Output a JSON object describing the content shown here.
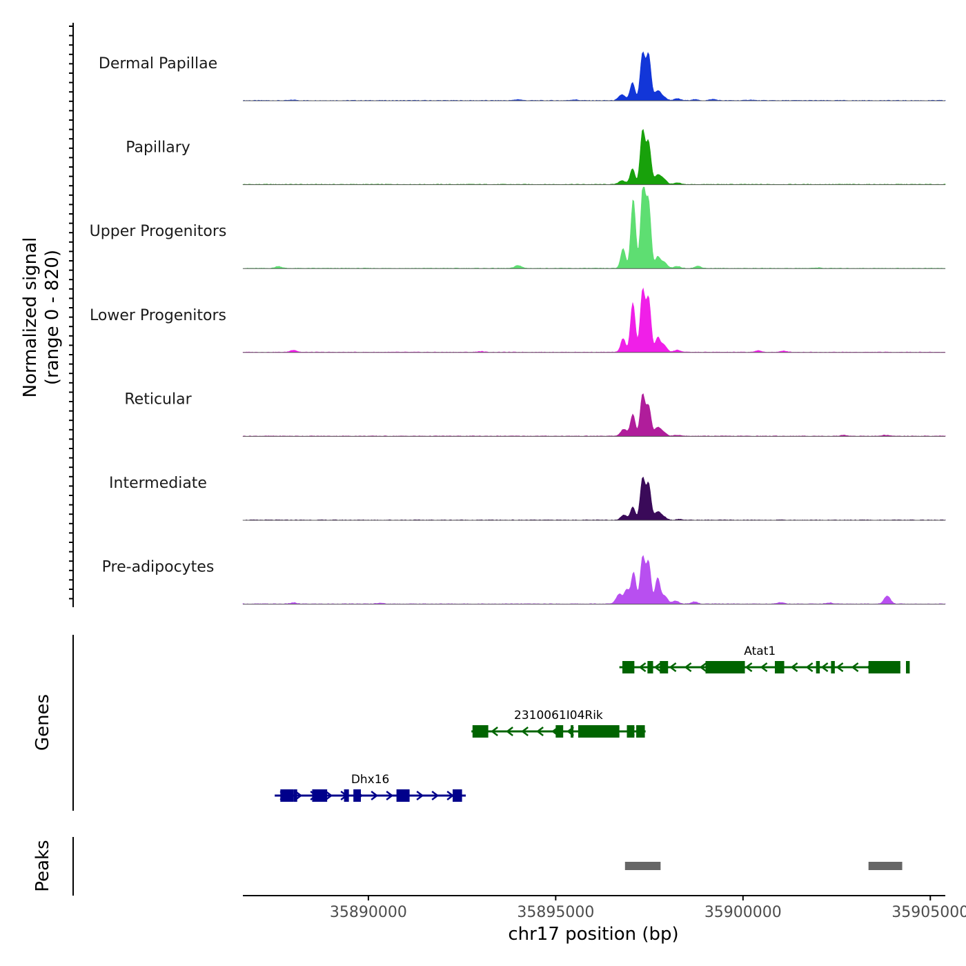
{
  "chart_data": {
    "type": "area",
    "title": "",
    "chromosome": "chr17",
    "xlabel": "chr17 position (bp)",
    "ylabel": "Normalized signal",
    "ylabel_range": "(range 0 - 820)",
    "ylim": [
      0,
      820
    ],
    "xlim": [
      35886650,
      35905400
    ],
    "x_ticks": [
      35890000,
      35895000,
      35900000,
      35905000
    ],
    "x_tick_labels": [
      "35890000",
      "35895000",
      "35900000",
      "35905000"
    ],
    "tracks": [
      {
        "name": "Dermal Papillae",
        "color": "#1236d8",
        "peaks": [
          [
            35896770,
            60
          ],
          [
            35897050,
            180
          ],
          [
            35897320,
            470
          ],
          [
            35897480,
            460
          ],
          [
            35897720,
            95
          ],
          [
            35897880,
            30
          ],
          [
            35898250,
            18
          ],
          [
            35898700,
            10
          ],
          [
            35899200,
            12
          ],
          [
            35900200,
            6
          ],
          [
            35895500,
            8
          ],
          [
            35894000,
            10
          ],
          [
            35888000,
            5
          ]
        ]
      },
      {
        "name": "Papillary",
        "color": "#18a10b",
        "peaks": [
          [
            35896770,
            40
          ],
          [
            35897050,
            160
          ],
          [
            35897320,
            540
          ],
          [
            35897480,
            420
          ],
          [
            35897720,
            90
          ],
          [
            35897880,
            50
          ],
          [
            35898250,
            15
          ]
        ]
      },
      {
        "name": "Upper Progenitors",
        "color": "#5ede72",
        "peaks": [
          [
            35896800,
            200
          ],
          [
            35897070,
            700
          ],
          [
            35897330,
            820
          ],
          [
            35897480,
            660
          ],
          [
            35897720,
            110
          ],
          [
            35897880,
            65
          ],
          [
            35898250,
            20
          ],
          [
            35898800,
            22
          ],
          [
            35887600,
            20
          ],
          [
            35894000,
            30
          ],
          [
            35902000,
            6
          ]
        ]
      },
      {
        "name": "Lower Progenitors",
        "color": "#f01fe8",
        "peaks": [
          [
            35896800,
            140
          ],
          [
            35897060,
            500
          ],
          [
            35897320,
            620
          ],
          [
            35897480,
            540
          ],
          [
            35897720,
            140
          ],
          [
            35897880,
            75
          ],
          [
            35898250,
            22
          ],
          [
            35888000,
            22
          ],
          [
            35900400,
            15
          ],
          [
            35901100,
            12
          ],
          [
            35893000,
            8
          ]
        ]
      },
      {
        "name": "Reticular",
        "color": "#b01d9b",
        "peaks": [
          [
            35896820,
            70
          ],
          [
            35897060,
            220
          ],
          [
            35897320,
            420
          ],
          [
            35897480,
            300
          ],
          [
            35897720,
            85
          ],
          [
            35897880,
            35
          ],
          [
            35898250,
            10
          ],
          [
            35902700,
            10
          ],
          [
            35903800,
            10
          ]
        ]
      },
      {
        "name": "Intermediate",
        "color": "#3a0a59",
        "peaks": [
          [
            35896820,
            50
          ],
          [
            35897060,
            130
          ],
          [
            35897320,
            420
          ],
          [
            35897480,
            360
          ],
          [
            35897720,
            80
          ],
          [
            35897880,
            30
          ],
          [
            35898300,
            8
          ]
        ]
      },
      {
        "name": "Pre-adipocytes",
        "color": "#b84ff0",
        "peaks": [
          [
            35896700,
            100
          ],
          [
            35896900,
            140
          ],
          [
            35897080,
            320
          ],
          [
            35897320,
            470
          ],
          [
            35897480,
            420
          ],
          [
            35897720,
            260
          ],
          [
            35897900,
            80
          ],
          [
            35898200,
            30
          ],
          [
            35898700,
            22
          ],
          [
            35903850,
            80
          ],
          [
            35888000,
            12
          ],
          [
            35890300,
            10
          ],
          [
            35901000,
            15
          ],
          [
            35902300,
            12
          ]
        ]
      }
    ],
    "genes_label": "Genes",
    "genes": [
      {
        "name": "Atat1",
        "strand": "-",
        "color": "#006400",
        "row": 1,
        "start": 35896700,
        "end": 35904200,
        "exons": [
          [
            35896780,
            35897100
          ],
          [
            35897450,
            35897600
          ],
          [
            35897780,
            35898000
          ],
          [
            35899000,
            35900050
          ],
          [
            35900850,
            35901100
          ],
          [
            35901950,
            35902050
          ],
          [
            35902350,
            35902450
          ],
          [
            35903350,
            35904200
          ],
          [
            35904350,
            35904450
          ]
        ]
      },
      {
        "name": "2310061I04Rik",
        "strand": "-",
        "color": "#006400",
        "row": 2,
        "start": 35892750,
        "end": 35897400,
        "exons": [
          [
            35892780,
            35893200
          ],
          [
            35895000,
            35895200
          ],
          [
            35895400,
            35895450
          ],
          [
            35895600,
            35896700
          ],
          [
            35896900,
            35897100
          ],
          [
            35897150,
            35897380
          ]
        ]
      },
      {
        "name": "Dhx16",
        "strand": "+",
        "color": "#00008b",
        "row": 3,
        "start": 35887500,
        "end": 35892600,
        "exons": [
          [
            35887650,
            35888000
          ],
          [
            35888000,
            35888100
          ],
          [
            35888500,
            35888900
          ],
          [
            35889350,
            35889480
          ],
          [
            35889600,
            35889800
          ],
          [
            35890750,
            35891100
          ],
          [
            35892250,
            35892500
          ]
        ]
      }
    ],
    "peaks_label": "Peaks",
    "peak_regions": [
      [
        35896850,
        35897800
      ],
      [
        35903350,
        35904250
      ]
    ]
  }
}
